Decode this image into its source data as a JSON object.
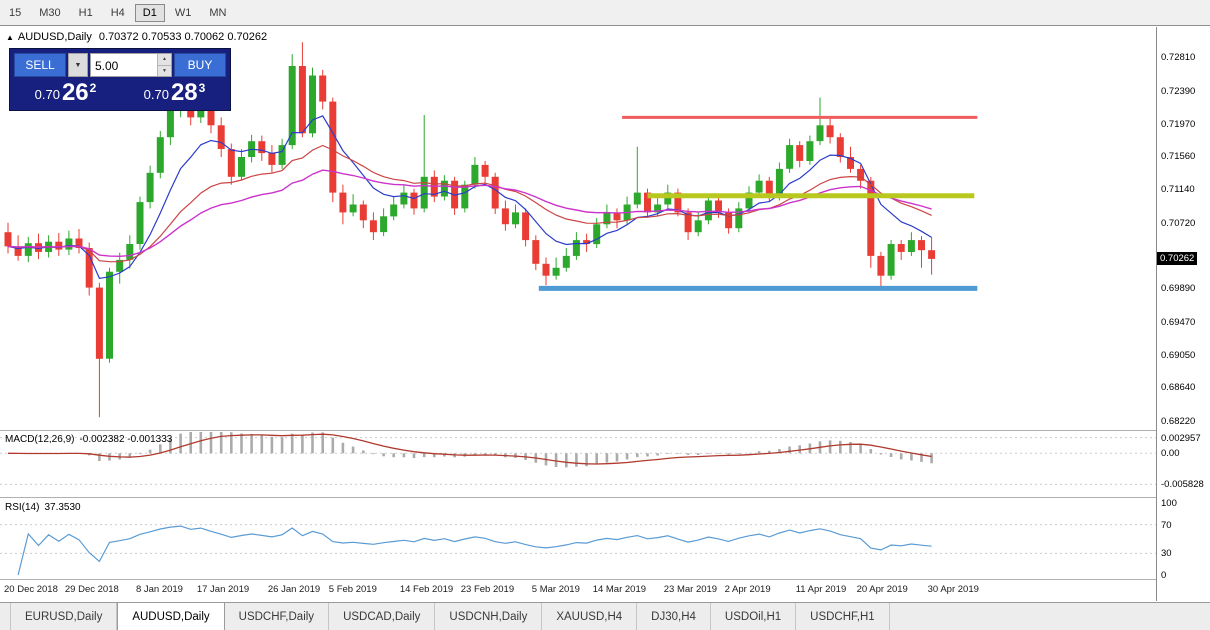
{
  "icons": {
    "collapse": "▲",
    "dropdown_arrow": "▼",
    "spin_up": "▲",
    "spin_down": "▼"
  },
  "toolbar": {
    "timeframes": [
      {
        "label": "15",
        "active": false
      },
      {
        "label": "M30",
        "active": false
      },
      {
        "label": "H1",
        "active": false
      },
      {
        "label": "H4",
        "active": false
      },
      {
        "label": "D1",
        "active": true
      },
      {
        "label": "W1",
        "active": false
      },
      {
        "label": "MN",
        "active": false
      }
    ]
  },
  "chart": {
    "symbol_title": "AUDUSD,Daily",
    "ohlc_text": "0.70372 0.70533 0.70062 0.70262"
  },
  "trade_panel": {
    "sell_label": "SELL",
    "buy_label": "BUY",
    "volume": "5.00",
    "sell_price": {
      "base": "0.70",
      "big": "26",
      "sup": "2"
    },
    "buy_price": {
      "base": "0.70",
      "big": "28",
      "sup": "3"
    }
  },
  "price_axis": {
    "ticks": [
      "0.72810",
      "0.72390",
      "0.71970",
      "0.71560",
      "0.71140",
      "0.70720",
      "0.69890",
      "0.69470",
      "0.69050",
      "0.68640",
      "0.68220"
    ],
    "current": "0.70262"
  },
  "macd": {
    "label": "MACD(12,26,9)",
    "values_text": "-0.002382 -0.001333",
    "scale_max": 0.004,
    "scale_min": -0.008,
    "ticks": [
      {
        "value": 0.002957,
        "label": "0.002957"
      },
      {
        "value": 0,
        "label": "0.00"
      },
      {
        "value": -0.005828,
        "label": "-0.005828"
      }
    ]
  },
  "rsi": {
    "label": "RSI(14)",
    "value_text": "37.3530",
    "ticks": [
      {
        "value": 100,
        "label": "100"
      },
      {
        "value": 70,
        "label": "70"
      },
      {
        "value": 30,
        "label": "30"
      },
      {
        "value": 0,
        "label": "0"
      }
    ]
  },
  "date_axis": {
    "labels": [
      {
        "text": "20 Dec 2018",
        "index": 0
      },
      {
        "text": "29 Dec 2018",
        "index": 6
      },
      {
        "text": "8 Jan 2019",
        "index": 13
      },
      {
        "text": "17 Jan 2019",
        "index": 19
      },
      {
        "text": "26 Jan 2019",
        "index": 26
      },
      {
        "text": "5 Feb 2019",
        "index": 32
      },
      {
        "text": "14 Feb 2019",
        "index": 39
      },
      {
        "text": "23 Feb 2019",
        "index": 45
      },
      {
        "text": "5 Mar 2019",
        "index": 52
      },
      {
        "text": "14 Mar 2019",
        "index": 58
      },
      {
        "text": "23 Mar 2019",
        "index": 65
      },
      {
        "text": "2 Apr 2019",
        "index": 71
      },
      {
        "text": "11 Apr 2019",
        "index": 78
      },
      {
        "text": "20 Apr 2019",
        "index": 84
      },
      {
        "text": "30 Apr 2019",
        "index": 91
      }
    ]
  },
  "bottom_tabs": [
    {
      "label": "EURUSD,Daily",
      "active": false
    },
    {
      "label": "AUDUSD,Daily",
      "active": true
    },
    {
      "label": "USDCHF,Daily",
      "active": false
    },
    {
      "label": "USDCAD,Daily",
      "active": false
    },
    {
      "label": "USDCNH,Daily",
      "active": false
    },
    {
      "label": "XAUUSD,H4",
      "active": false
    },
    {
      "label": "DJ30,H4",
      "active": false
    },
    {
      "label": "USDOil,H1",
      "active": false
    },
    {
      "label": "USDCHF,H1",
      "active": false
    }
  ],
  "chart_data": {
    "type": "candlestick",
    "symbol": "AUDUSD",
    "period": "Daily",
    "price_max": 0.7318,
    "price_min": 0.681,
    "up_color": "#2ca82c",
    "down_color": "#e93c34",
    "moving_averages": [
      {
        "period": 8,
        "method": "ema",
        "color": "#2b3ccc",
        "width": 1.2
      },
      {
        "period": 20,
        "method": "ema",
        "color": "#cc4444",
        "width": 1.2
      },
      {
        "period": 34,
        "method": "ema",
        "color": "#cc33cc",
        "width": 1.4
      }
    ],
    "levels": [
      {
        "name": "resistance",
        "price": 0.7205,
        "color": "#f25c5c",
        "width": 3,
        "from_index": 60.5,
        "to_index": 95.5
      },
      {
        "name": "mid-support",
        "price": 0.7106,
        "color": "#b8c81e",
        "width": 5,
        "from_index": 63,
        "to_index": 95.2
      },
      {
        "name": "support",
        "price": 0.6989,
        "color": "#4e9bd4",
        "width": 5,
        "from_index": 52.3,
        "to_index": 95.5
      }
    ],
    "candles": [
      [
        0.706,
        0.7072,
        0.7033,
        0.7042
      ],
      [
        0.7042,
        0.7056,
        0.7024,
        0.703
      ],
      [
        0.703,
        0.7054,
        0.7022,
        0.7046
      ],
      [
        0.7046,
        0.7058,
        0.7026,
        0.7035
      ],
      [
        0.7035,
        0.7056,
        0.7028,
        0.7048
      ],
      [
        0.7048,
        0.7059,
        0.703,
        0.7038
      ],
      [
        0.7038,
        0.7062,
        0.7031,
        0.7052
      ],
      [
        0.7052,
        0.7064,
        0.7033,
        0.704
      ],
      [
        0.704,
        0.7047,
        0.698,
        0.699
      ],
      [
        0.699,
        0.6996,
        0.6826,
        0.69
      ],
      [
        0.69,
        0.7015,
        0.6895,
        0.701
      ],
      [
        0.701,
        0.7034,
        0.6995,
        0.7025
      ],
      [
        0.7025,
        0.7056,
        0.7014,
        0.7045
      ],
      [
        0.7045,
        0.7105,
        0.7038,
        0.7098
      ],
      [
        0.7098,
        0.7144,
        0.709,
        0.7135
      ],
      [
        0.7135,
        0.7188,
        0.7128,
        0.718
      ],
      [
        0.718,
        0.7224,
        0.717,
        0.7215
      ],
      [
        0.7215,
        0.7245,
        0.7205,
        0.7235
      ],
      [
        0.7235,
        0.724,
        0.7195,
        0.7205
      ],
      [
        0.7205,
        0.7235,
        0.7198,
        0.7225
      ],
      [
        0.7225,
        0.723,
        0.7185,
        0.7195
      ],
      [
        0.7195,
        0.7205,
        0.7155,
        0.7165
      ],
      [
        0.7165,
        0.7172,
        0.712,
        0.713
      ],
      [
        0.713,
        0.7165,
        0.7125,
        0.7155
      ],
      [
        0.7155,
        0.7183,
        0.7148,
        0.7175
      ],
      [
        0.7175,
        0.7182,
        0.715,
        0.716
      ],
      [
        0.716,
        0.717,
        0.7135,
        0.7145
      ],
      [
        0.7145,
        0.7178,
        0.714,
        0.717
      ],
      [
        0.717,
        0.7285,
        0.7165,
        0.727
      ],
      [
        0.727,
        0.73,
        0.718,
        0.7185
      ],
      [
        0.7185,
        0.7268,
        0.718,
        0.7258
      ],
      [
        0.7258,
        0.7265,
        0.7215,
        0.7225
      ],
      [
        0.7225,
        0.723,
        0.7098,
        0.711
      ],
      [
        0.711,
        0.712,
        0.707,
        0.7085
      ],
      [
        0.7085,
        0.7108,
        0.708,
        0.7095
      ],
      [
        0.7095,
        0.71,
        0.7065,
        0.7075
      ],
      [
        0.7075,
        0.7085,
        0.705,
        0.706
      ],
      [
        0.706,
        0.709,
        0.7055,
        0.708
      ],
      [
        0.708,
        0.7105,
        0.7075,
        0.7095
      ],
      [
        0.7095,
        0.712,
        0.709,
        0.711
      ],
      [
        0.711,
        0.7115,
        0.7082,
        0.709
      ],
      [
        0.709,
        0.7208,
        0.7085,
        0.713
      ],
      [
        0.713,
        0.7138,
        0.7098,
        0.7105
      ],
      [
        0.7105,
        0.7132,
        0.71,
        0.7125
      ],
      [
        0.7125,
        0.713,
        0.7082,
        0.709
      ],
      [
        0.709,
        0.7125,
        0.7085,
        0.712
      ],
      [
        0.712,
        0.7155,
        0.7115,
        0.7145
      ],
      [
        0.7145,
        0.715,
        0.7122,
        0.713
      ],
      [
        0.713,
        0.7135,
        0.7083,
        0.709
      ],
      [
        0.709,
        0.71,
        0.7062,
        0.707
      ],
      [
        0.707,
        0.7095,
        0.7065,
        0.7085
      ],
      [
        0.7085,
        0.709,
        0.7042,
        0.705
      ],
      [
        0.705,
        0.7056,
        0.7012,
        0.702
      ],
      [
        0.702,
        0.7028,
        0.6993,
        0.7005
      ],
      [
        0.7005,
        0.7028,
        0.7,
        0.7015
      ],
      [
        0.7015,
        0.704,
        0.701,
        0.703
      ],
      [
        0.703,
        0.706,
        0.7025,
        0.705
      ],
      [
        0.705,
        0.7058,
        0.7035,
        0.7045
      ],
      [
        0.7045,
        0.7078,
        0.704,
        0.707
      ],
      [
        0.707,
        0.7095,
        0.7065,
        0.7085
      ],
      [
        0.7085,
        0.709,
        0.7065,
        0.7075
      ],
      [
        0.7075,
        0.7105,
        0.707,
        0.7095
      ],
      [
        0.7095,
        0.7168,
        0.709,
        0.711
      ],
      [
        0.711,
        0.7115,
        0.7078,
        0.7085
      ],
      [
        0.7085,
        0.7105,
        0.708,
        0.7095
      ],
      [
        0.7095,
        0.712,
        0.709,
        0.711
      ],
      [
        0.711,
        0.7115,
        0.708,
        0.7085
      ],
      [
        0.7085,
        0.709,
        0.705,
        0.706
      ],
      [
        0.706,
        0.7085,
        0.7055,
        0.7075
      ],
      [
        0.7075,
        0.7108,
        0.707,
        0.71
      ],
      [
        0.71,
        0.7105,
        0.7078,
        0.7085
      ],
      [
        0.7085,
        0.709,
        0.7058,
        0.7065
      ],
      [
        0.7065,
        0.7098,
        0.706,
        0.709
      ],
      [
        0.709,
        0.7118,
        0.7085,
        0.711
      ],
      [
        0.711,
        0.7133,
        0.7105,
        0.7125
      ],
      [
        0.7125,
        0.713,
        0.7098,
        0.7105
      ],
      [
        0.7105,
        0.7148,
        0.71,
        0.714
      ],
      [
        0.714,
        0.7178,
        0.7135,
        0.717
      ],
      [
        0.717,
        0.7175,
        0.7142,
        0.715
      ],
      [
        0.715,
        0.7182,
        0.7145,
        0.7175
      ],
      [
        0.7175,
        0.723,
        0.717,
        0.7195
      ],
      [
        0.7195,
        0.7206,
        0.7172,
        0.718
      ],
      [
        0.718,
        0.7185,
        0.7148,
        0.7155
      ],
      [
        0.7155,
        0.7168,
        0.7135,
        0.714
      ],
      [
        0.714,
        0.7145,
        0.7115,
        0.7125
      ],
      [
        0.7125,
        0.713,
        0.7015,
        0.703
      ],
      [
        0.703,
        0.7035,
        0.699,
        0.7005
      ],
      [
        0.7005,
        0.705,
        0.7,
        0.7045
      ],
      [
        0.7045,
        0.705,
        0.7025,
        0.7035
      ],
      [
        0.7035,
        0.706,
        0.703,
        0.705
      ],
      [
        0.705,
        0.7055,
        0.7015,
        0.70372
      ],
      [
        0.70372,
        0.70533,
        0.70062,
        0.70262
      ]
    ]
  }
}
